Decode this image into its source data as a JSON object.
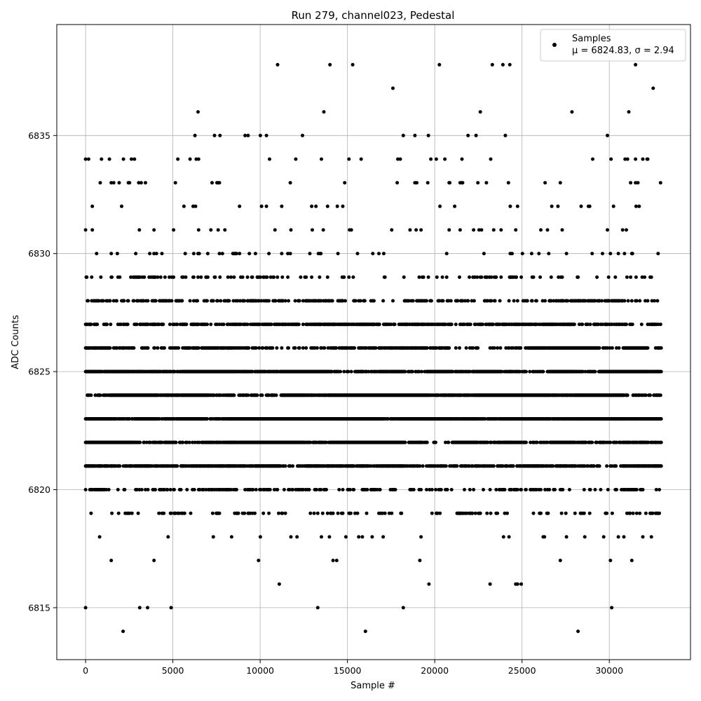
{
  "chart_data": {
    "type": "scatter",
    "title": "Run 279, channel023, Pedestal",
    "xlabel": "Sample #",
    "ylabel": "ADC Counts",
    "xlim": [
      -1650,
      34650
    ],
    "ylim": [
      6812.8,
      6839.7
    ],
    "xticks": [
      0,
      5000,
      10000,
      15000,
      20000,
      25000,
      30000
    ],
    "yticks": [
      6815,
      6820,
      6825,
      6830,
      6835
    ],
    "grid": true,
    "legend_position": "top-right",
    "marker_color": "#000000",
    "series": [
      {
        "name": "Samples",
        "stats_label": "μ = 6824.83, σ = 2.94",
        "x_range": [
          0,
          33000
        ],
        "level_density": [
          {
            "y": 6838,
            "density": 0.0002
          },
          {
            "y": 6837,
            "density": 0.0012
          },
          {
            "y": 6836,
            "density": 0.004
          },
          {
            "y": 6835,
            "density": 0.01
          },
          {
            "y": 6834,
            "density": 0.02
          },
          {
            "y": 6833,
            "density": 0.035
          },
          {
            "y": 6832,
            "density": 0.035
          },
          {
            "y": 6831,
            "density": 0.03
          },
          {
            "y": 6830,
            "density": 0.05
          },
          {
            "y": 6829,
            "density": 0.14
          },
          {
            "y": 6828,
            "density": 0.3
          },
          {
            "y": 6827,
            "density": 0.45
          },
          {
            "y": 6826,
            "density": 0.6
          },
          {
            "y": 6825,
            "density": 0.85
          },
          {
            "y": 6824,
            "density": 0.9
          },
          {
            "y": 6823,
            "density": 0.9
          },
          {
            "y": 6822,
            "density": 0.75
          },
          {
            "y": 6821,
            "density": 0.5
          },
          {
            "y": 6820,
            "density": 0.25
          },
          {
            "y": 6819,
            "density": 0.12
          },
          {
            "y": 6818,
            "density": 0.03
          },
          {
            "y": 6817,
            "density": 0.012
          },
          {
            "y": 6816,
            "density": 0.004
          },
          {
            "y": 6815,
            "density": 0.001
          },
          {
            "y": 6814,
            "density": 0.0002
          }
        ],
        "isolated_points": [
          {
            "x": 0,
            "y": 6815
          },
          {
            "x": 3100,
            "y": 6815
          },
          {
            "x": 3550,
            "y": 6815
          },
          {
            "x": 4900,
            "y": 6815
          },
          {
            "x": 13300,
            "y": 6815
          },
          {
            "x": 18200,
            "y": 6815
          },
          {
            "x": 2150,
            "y": 6814
          },
          {
            "x": 11000,
            "y": 6838
          },
          {
            "x": 14000,
            "y": 6838
          },
          {
            "x": 15300,
            "y": 6838
          },
          {
            "x": 23300,
            "y": 6838
          },
          {
            "x": 24300,
            "y": 6838
          },
          {
            "x": 31500,
            "y": 6838
          }
        ]
      }
    ]
  }
}
